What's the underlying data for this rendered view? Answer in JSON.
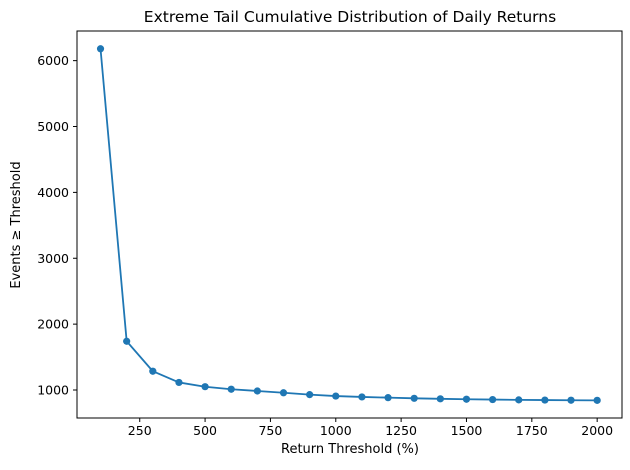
{
  "chart_data": {
    "type": "line",
    "title": "Extreme Tail Cumulative Distribution of Daily Returns",
    "xlabel": "Return Threshold (%)",
    "ylabel": "Events ≥ Threshold",
    "x": [
      100,
      200,
      300,
      400,
      500,
      600,
      700,
      800,
      900,
      1000,
      1100,
      1200,
      1300,
      1400,
      1500,
      1600,
      1700,
      1800,
      1900,
      2000
    ],
    "y": [
      6180,
      1740,
      1285,
      1115,
      1050,
      1012,
      985,
      958,
      930,
      908,
      895,
      884,
      874,
      866,
      860,
      855,
      850,
      847,
      845,
      843
    ],
    "xticks": [
      250,
      500,
      750,
      1000,
      1250,
      1500,
      1750,
      2000
    ],
    "yticks": [
      1000,
      2000,
      3000,
      4000,
      5000,
      6000
    ],
    "xlim": [
      10,
      2095
    ],
    "ylim": [
      575,
      6450
    ],
    "grid": false,
    "legend": null,
    "marker": "circle",
    "colors": {
      "series": "#1f77b4",
      "axes": "#000000",
      "background": "#ffffff"
    }
  }
}
